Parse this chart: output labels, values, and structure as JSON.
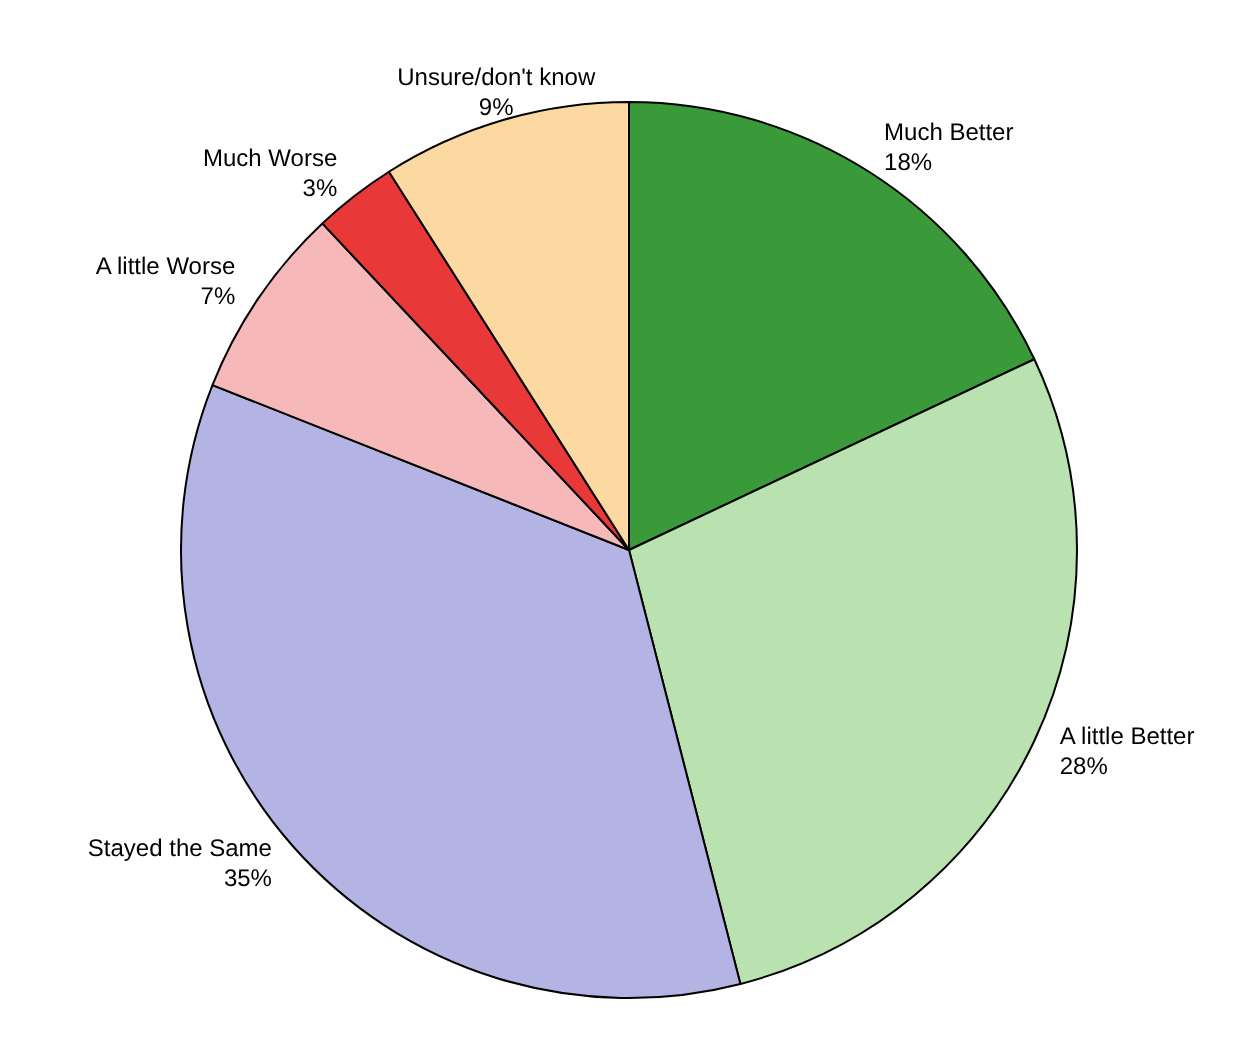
{
  "chart_data": {
    "type": "pie",
    "categories": [
      "Much Better",
      "A little Better",
      "Stayed the Same",
      "A little Worse",
      "Much Worse",
      "Unsure/don't know"
    ],
    "values": [
      18,
      28,
      35,
      7,
      3,
      9
    ],
    "value_labels": [
      "18%",
      "28%",
      "35%",
      "7%",
      "3%",
      "9%"
    ],
    "colors": [
      "#3a9a3a",
      "#b9e2b0",
      "#b4b4e4",
      "#f6b8b8",
      "#e83838",
      "#fdd9a2"
    ],
    "legend": false
  }
}
